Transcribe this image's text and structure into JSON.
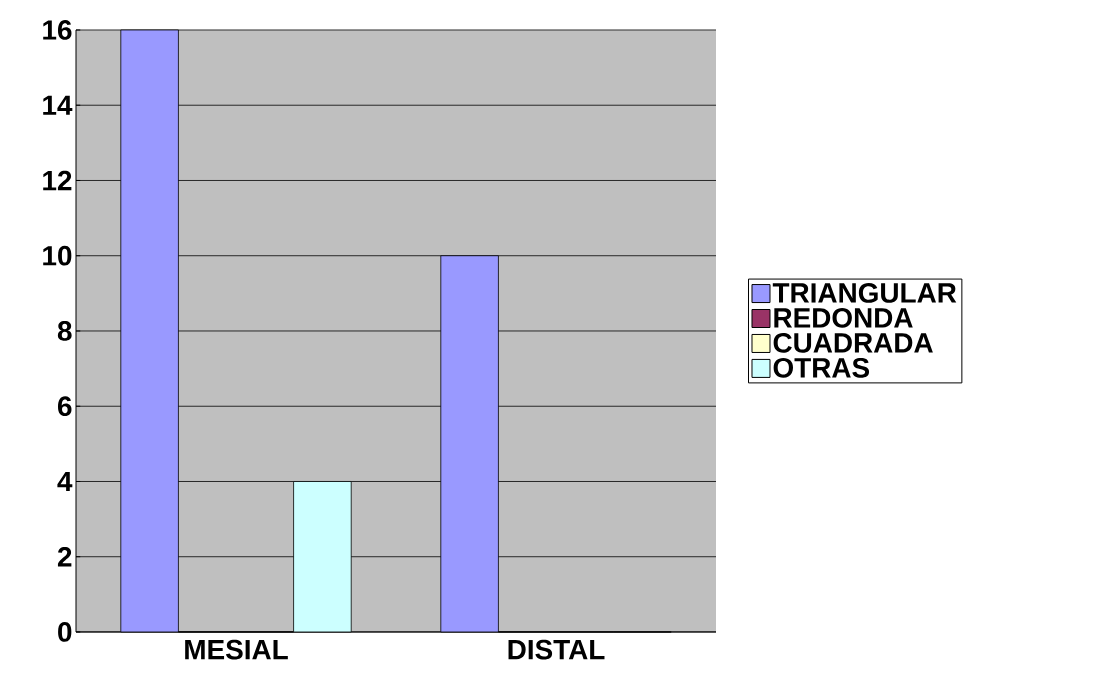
{
  "chart_data": {
    "type": "bar",
    "categories": [
      "MESIAL",
      "DISTAL"
    ],
    "series": [
      {
        "name": "TRIANGULAR",
        "color": "#9999ff",
        "values": [
          16,
          10
        ]
      },
      {
        "name": "REDONDA",
        "color": "#993366",
        "values": [
          0,
          0
        ]
      },
      {
        "name": "CUADRADA",
        "color": "#ffffcc",
        "values": [
          0,
          0
        ]
      },
      {
        "name": "OTRAS",
        "color": "#ccffff",
        "values": [
          4,
          0
        ]
      }
    ],
    "ylim": [
      0,
      16
    ],
    "yticks": [
      0,
      2,
      4,
      6,
      8,
      10,
      12,
      14,
      16
    ],
    "grid": "y",
    "legend": "right"
  }
}
